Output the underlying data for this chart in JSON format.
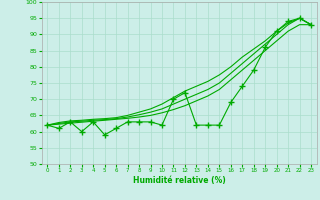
{
  "x": [
    0,
    1,
    2,
    3,
    4,
    5,
    6,
    7,
    8,
    9,
    10,
    11,
    12,
    13,
    14,
    15,
    16,
    17,
    18,
    19,
    20,
    21,
    22,
    23
  ],
  "y_main": [
    62,
    61,
    63,
    60,
    63,
    59,
    61,
    63,
    63,
    63,
    62,
    70,
    72,
    62,
    62,
    62,
    69,
    74,
    79,
    86,
    91,
    94,
    95,
    93
  ],
  "y_line1": [
    62,
    62.3,
    62.6,
    62.9,
    63.2,
    63.5,
    63.8,
    64.1,
    64.5,
    65,
    65.8,
    66.8,
    68,
    69.5,
    71,
    73,
    76,
    79,
    82,
    85,
    88,
    91,
    93,
    93
  ],
  "y_line2": [
    62,
    62.5,
    63,
    63.2,
    63.5,
    63.7,
    64,
    64.5,
    65.2,
    66,
    67,
    68.5,
    70,
    71.5,
    73,
    75,
    78,
    81,
    84,
    87,
    90,
    93,
    95,
    93
  ],
  "y_line3": [
    62,
    62.8,
    63.3,
    63.5,
    63.8,
    64,
    64.3,
    65,
    66,
    67,
    68.5,
    70.5,
    72.5,
    74,
    75.5,
    77.5,
    80,
    83,
    85.5,
    88,
    91,
    93.5,
    95,
    93
  ],
  "ylim": [
    50,
    100
  ],
  "xlim": [
    -0.5,
    23.5
  ],
  "yticks": [
    50,
    55,
    60,
    65,
    70,
    75,
    80,
    85,
    90,
    95,
    100
  ],
  "xticks": [
    0,
    1,
    2,
    3,
    4,
    5,
    6,
    7,
    8,
    9,
    10,
    11,
    12,
    13,
    14,
    15,
    16,
    17,
    18,
    19,
    20,
    21,
    22,
    23
  ],
  "xlabel": "Humidité relative (%)",
  "bg_color": "#cceee8",
  "grid_color": "#aaddcc",
  "line_color": "#00aa00",
  "marker_color": "#00aa00",
  "ylabel_color": "#00aa00",
  "tick_color": "#00aa00"
}
